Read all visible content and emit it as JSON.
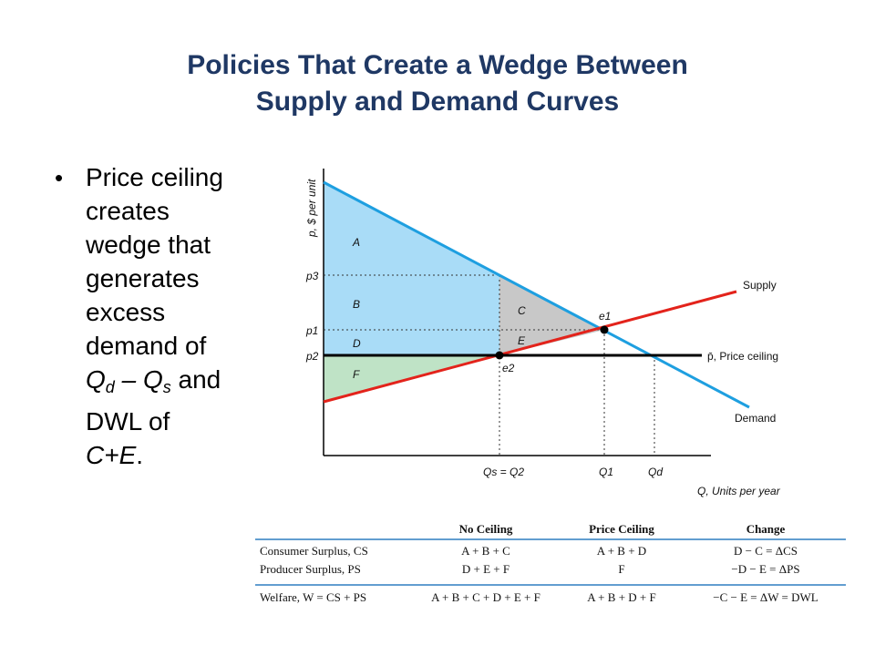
{
  "slide": {
    "title_line1": "Policies That Create a Wedge Between",
    "title_line2": "Supply and Demand Curves",
    "bullet": {
      "l1": "Price ceiling",
      "l2": "creates",
      "l3": "wedge that",
      "l4": "generates",
      "l5": "excess",
      "l6": "demand of",
      "qd": "Q",
      "qd_sub": "d",
      "dash": " – ",
      "qs": "Q",
      "qs_sub": "s",
      "and": " and",
      "l8": "DWL of",
      "l9": "C+E",
      "period": "."
    }
  },
  "graph": {
    "y_axis_label": "p, $ per unit",
    "x_axis_label": "Q, Units per year",
    "p3": "p3",
    "p1": "p1",
    "p2": "p2",
    "area_A": "A",
    "area_B": "B",
    "area_C": "C",
    "area_D": "D",
    "area_E": "E",
    "area_F": "F",
    "e1": "e1",
    "e2": "e2",
    "supply": "Supply",
    "demand": "Demand",
    "ceiling": "p̄, Price ceiling",
    "q_s_eq_q2": "Qs = Q2",
    "q1": "Q1",
    "qd": "Qd",
    "colors": {
      "supply": "#e3231b",
      "demand": "#1e9fe0",
      "consumer_area": "#a9dcf7",
      "producer_area": "#bfe3c6",
      "dwl_area": "#c8c8c8",
      "ceiling": "#000000"
    }
  },
  "table": {
    "headers": [
      "No Ceiling",
      "Price Ceiling",
      "Change"
    ],
    "rows": [
      {
        "label": "Consumer Surplus, CS",
        "no_ceiling": "A + B + C",
        "price_ceiling": "A + B + D",
        "change": "D − C = ΔCS"
      },
      {
        "label": "Producer Surplus, PS",
        "no_ceiling": "D + E + F",
        "price_ceiling": "F",
        "change": "−D − E = ΔPS"
      },
      {
        "label": "Welfare, W = CS + PS",
        "no_ceiling": "A + B + C + D + E + F",
        "price_ceiling": "A + B + D + F",
        "change": "−C − E = ΔW = DWL"
      }
    ]
  }
}
